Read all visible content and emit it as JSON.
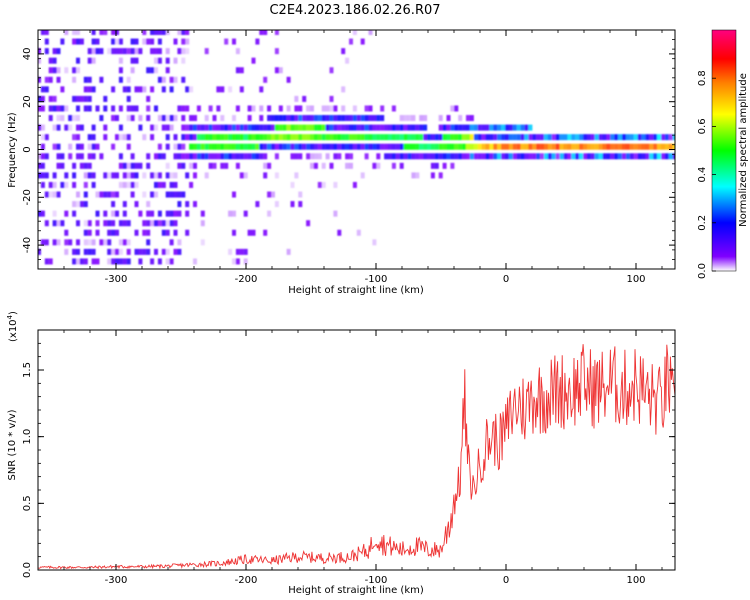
{
  "figure_title": "C2E4.2023.186.02.26.R07",
  "chart_data": [
    {
      "type": "heatmap",
      "title": "",
      "xlabel": "Height of straight line (km)",
      "ylabel": "Frequency (Hz)",
      "xlim": [
        -360,
        130
      ],
      "ylim": [
        -50,
        50
      ],
      "xticks": [
        -300,
        -200,
        -100,
        0,
        100
      ],
      "xtick_labels": [
        "-300",
        "-200",
        "-100",
        "0",
        "100"
      ],
      "yticks": [
        -40,
        -20,
        0,
        20,
        40
      ],
      "ytick_labels": [
        "-40",
        "-20",
        "0",
        "20",
        "40"
      ],
      "grid": false,
      "colorbar": {
        "label": "Normalized spectral amplitude",
        "range": [
          0,
          1
        ],
        "ticks": [
          0.0,
          0.2,
          0.4,
          0.6,
          0.8
        ],
        "tick_labels": [
          "0.0",
          "0.2",
          "0.4",
          "0.6",
          "0.8"
        ],
        "colormap": [
          "#ffffff",
          "#7f00ff",
          "#0000ff",
          "#00ffff",
          "#00ff00",
          "#ffff00",
          "#ff8000",
          "#ff0000",
          "#ff007f"
        ]
      },
      "ridge": {
        "description_free": true,
        "x": [
          -245,
          -230,
          -215,
          -200,
          -185,
          -170,
          -155,
          -140,
          -125,
          -110,
          -95,
          -80,
          -65,
          -55,
          -45,
          -35,
          -25,
          -10,
          0,
          20,
          50,
          80,
          110,
          130
        ],
        "frequency": [
          0,
          2,
          3,
          1,
          4,
          7,
          6,
          5,
          5,
          5,
          4,
          3,
          1,
          -1,
          2,
          3,
          1,
          1,
          1,
          0,
          0,
          0,
          0,
          0
        ],
        "amplitude": [
          0.5,
          0.55,
          0.55,
          0.5,
          0.6,
          0.6,
          0.6,
          0.55,
          0.55,
          0.55,
          0.5,
          0.5,
          0.5,
          0.5,
          0.55,
          0.55,
          0.7,
          0.8,
          0.85,
          0.85,
          0.85,
          0.85,
          0.85,
          0.8
        ]
      }
    },
    {
      "type": "line",
      "title": "",
      "xlabel": "Height of straight line (km)",
      "ylabel": "SNR (10 * v/v)",
      "y_multiplier": "(x10",
      "y_multiplier_exp": "4",
      "y_multiplier_close": ")",
      "xlim": [
        -360,
        130
      ],
      "ylim": [
        0,
        18000
      ],
      "xticks": [
        -300,
        -200,
        -100,
        0,
        100
      ],
      "xtick_labels": [
        "-300",
        "-200",
        "-100",
        "0",
        "100"
      ],
      "yticks": [
        0,
        5000,
        10000,
        15000
      ],
      "ytick_labels": [
        "0.0",
        "0.5",
        "1.0",
        "1.5"
      ],
      "grid": false,
      "series": [
        {
          "color": "#ee3333",
          "x": [
            -360,
            -340,
            -320,
            -300,
            -280,
            -260,
            -240,
            -220,
            -200,
            -180,
            -160,
            -140,
            -120,
            -105,
            -100,
            -95,
            -90,
            -80,
            -70,
            -60,
            -50,
            -45,
            -40,
            -35,
            -32,
            -30,
            -28,
            -25,
            -20,
            -15,
            -10,
            -5,
            0,
            5,
            10,
            15,
            20,
            30,
            40,
            50,
            60,
            70,
            80,
            90,
            100,
            110,
            120,
            125,
            130
          ],
          "y": [
            200,
            200,
            200,
            250,
            250,
            300,
            400,
            500,
            800,
            700,
            1000,
            900,
            1000,
            1500,
            2800,
            2000,
            1800,
            1500,
            1800,
            1500,
            1500,
            3000,
            5000,
            7000,
            13000,
            9000,
            7000,
            6000,
            8000,
            9500,
            10000,
            9500,
            10500,
            12000,
            12500,
            12000,
            13000,
            13000,
            13500,
            13500,
            14000,
            13500,
            14000,
            13500,
            14000,
            13000,
            12500,
            14500,
            11000
          ]
        }
      ]
    }
  ]
}
